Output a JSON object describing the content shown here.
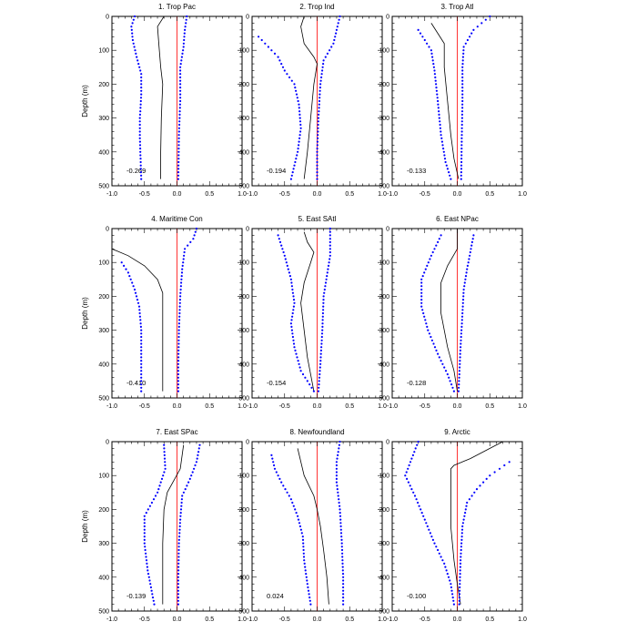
{
  "chart_data": {
    "type": "line",
    "colors": {
      "mean": "#000000",
      "spread": "#0000ff",
      "zero_line": "#ff0000",
      "frame": "#000000"
    },
    "xlim": [
      -1.0,
      1.0
    ],
    "ylim": [
      0,
      500
    ],
    "y_inverted": true,
    "grid": false,
    "y_axis_label": "Depth (m)",
    "x_tick_labels": [
      "-1.0",
      "-0.5",
      "0.0",
      "0.5",
      "1.0"
    ],
    "y_ticks": [
      0,
      100,
      200,
      300,
      400,
      500
    ],
    "panels": [
      {
        "title": "1. Trop Pac",
        "annotation": "-0.269",
        "mean": [
          [
            -0.2,
            0
          ],
          [
            -0.3,
            30
          ],
          [
            -0.28,
            80
          ],
          [
            -0.25,
            150
          ],
          [
            -0.22,
            200
          ],
          [
            -0.24,
            300
          ],
          [
            -0.25,
            400
          ],
          [
            -0.25,
            480
          ]
        ],
        "lower": [
          [
            -0.65,
            0
          ],
          [
            -0.7,
            30
          ],
          [
            -0.68,
            70
          ],
          [
            -0.62,
            120
          ],
          [
            -0.55,
            170
          ],
          [
            -0.55,
            230
          ],
          [
            -0.57,
            300
          ],
          [
            -0.57,
            360
          ],
          [
            -0.56,
            420
          ],
          [
            -0.55,
            480
          ]
        ],
        "upper": [
          [
            0.15,
            0
          ],
          [
            0.12,
            40
          ],
          [
            0.1,
            90
          ],
          [
            0.05,
            150
          ],
          [
            0.05,
            250
          ],
          [
            0.03,
            350
          ],
          [
            0.02,
            480
          ]
        ]
      },
      {
        "title": "2. Trop Ind",
        "annotation": "-0.194",
        "mean": [
          [
            -0.2,
            0
          ],
          [
            -0.25,
            30
          ],
          [
            -0.2,
            80
          ],
          [
            -0.05,
            120
          ],
          [
            0.0,
            140
          ],
          [
            -0.05,
            200
          ],
          [
            -0.1,
            300
          ],
          [
            -0.15,
            400
          ],
          [
            -0.2,
            480
          ]
        ],
        "lower": [
          [
            -0.9,
            60
          ],
          [
            -0.75,
            90
          ],
          [
            -0.6,
            120
          ],
          [
            -0.5,
            160
          ],
          [
            -0.35,
            200
          ],
          [
            -0.28,
            260
          ],
          [
            -0.25,
            330
          ],
          [
            -0.3,
            400
          ],
          [
            -0.4,
            480
          ]
        ],
        "upper": [
          [
            0.35,
            0
          ],
          [
            0.3,
            40
          ],
          [
            0.25,
            80
          ],
          [
            0.1,
            130
          ],
          [
            0.05,
            200
          ],
          [
            0.02,
            300
          ],
          [
            0.0,
            400
          ],
          [
            0.0,
            480
          ]
        ]
      },
      {
        "title": "3. Trop Atl",
        "annotation": "-0.133",
        "mean": [
          [
            -0.4,
            20
          ],
          [
            -0.3,
            50
          ],
          [
            -0.2,
            80
          ],
          [
            -0.2,
            150
          ],
          [
            -0.15,
            250
          ],
          [
            -0.1,
            350
          ],
          [
            -0.05,
            420
          ],
          [
            0.02,
            480
          ]
        ],
        "lower": [
          [
            -0.6,
            40
          ],
          [
            -0.5,
            70
          ],
          [
            -0.4,
            100
          ],
          [
            -0.35,
            160
          ],
          [
            -0.3,
            250
          ],
          [
            -0.25,
            350
          ],
          [
            -0.18,
            430
          ],
          [
            -0.1,
            480
          ]
        ],
        "upper": [
          [
            0.5,
            0
          ],
          [
            0.25,
            40
          ],
          [
            0.1,
            90
          ],
          [
            0.08,
            150
          ],
          [
            0.08,
            250
          ],
          [
            0.07,
            350
          ],
          [
            0.06,
            480
          ]
        ]
      },
      {
        "title": "4. Maritime Con",
        "annotation": "-0.410",
        "mean": [
          [
            -1.0,
            60
          ],
          [
            -0.75,
            80
          ],
          [
            -0.5,
            110
          ],
          [
            -0.3,
            150
          ],
          [
            -0.22,
            190
          ],
          [
            -0.22,
            250
          ],
          [
            -0.22,
            350
          ],
          [
            -0.22,
            480
          ]
        ],
        "lower": [
          [
            -0.85,
            100
          ],
          [
            -0.75,
            130
          ],
          [
            -0.65,
            180
          ],
          [
            -0.58,
            230
          ],
          [
            -0.55,
            300
          ],
          [
            -0.55,
            400
          ],
          [
            -0.55,
            480
          ]
        ],
        "upper": [
          [
            0.3,
            0
          ],
          [
            0.25,
            30
          ],
          [
            0.12,
            60
          ],
          [
            0.08,
            120
          ],
          [
            0.05,
            200
          ],
          [
            0.03,
            300
          ],
          [
            0.02,
            400
          ],
          [
            0.02,
            480
          ]
        ]
      },
      {
        "title": "5. East SAtl",
        "annotation": "-0.154",
        "mean": [
          [
            -0.2,
            10
          ],
          [
            -0.15,
            40
          ],
          [
            -0.05,
            70
          ],
          [
            -0.1,
            100
          ],
          [
            -0.2,
            160
          ],
          [
            -0.25,
            220
          ],
          [
            -0.2,
            300
          ],
          [
            -0.15,
            380
          ],
          [
            -0.05,
            480
          ]
        ],
        "lower": [
          [
            -0.6,
            20
          ],
          [
            -0.5,
            80
          ],
          [
            -0.4,
            150
          ],
          [
            -0.35,
            220
          ],
          [
            -0.4,
            280
          ],
          [
            -0.35,
            350
          ],
          [
            -0.25,
            420
          ],
          [
            -0.05,
            480
          ]
        ],
        "upper": [
          [
            0.2,
            0
          ],
          [
            0.2,
            80
          ],
          [
            0.15,
            140
          ],
          [
            0.1,
            200
          ],
          [
            0.08,
            300
          ],
          [
            0.05,
            400
          ],
          [
            0.02,
            480
          ]
        ]
      },
      {
        "title": "6. East NPac",
        "annotation": "-0.128",
        "mean": [
          [
            0.0,
            0
          ],
          [
            0.0,
            60
          ],
          [
            -0.15,
            110
          ],
          [
            -0.25,
            160
          ],
          [
            -0.25,
            250
          ],
          [
            -0.15,
            350
          ],
          [
            -0.05,
            420
          ],
          [
            0.0,
            480
          ]
        ],
        "lower": [
          [
            -0.25,
            20
          ],
          [
            -0.4,
            80
          ],
          [
            -0.55,
            150
          ],
          [
            -0.55,
            230
          ],
          [
            -0.45,
            300
          ],
          [
            -0.3,
            370
          ],
          [
            -0.15,
            430
          ],
          [
            -0.05,
            480
          ]
        ],
        "upper": [
          [
            0.25,
            20
          ],
          [
            0.2,
            70
          ],
          [
            0.15,
            120
          ],
          [
            0.1,
            180
          ],
          [
            0.08,
            250
          ],
          [
            0.05,
            350
          ],
          [
            0.02,
            480
          ]
        ]
      },
      {
        "title": "7. East SPac",
        "annotation": "-0.139",
        "mean": [
          [
            0.1,
            10
          ],
          [
            0.05,
            80
          ],
          [
            -0.15,
            150
          ],
          [
            -0.2,
            200
          ],
          [
            -0.22,
            300
          ],
          [
            -0.22,
            400
          ],
          [
            -0.22,
            480
          ]
        ],
        "lower": [
          [
            -0.2,
            10
          ],
          [
            -0.18,
            80
          ],
          [
            -0.3,
            150
          ],
          [
            -0.5,
            220
          ],
          [
            -0.5,
            300
          ],
          [
            -0.45,
            380
          ],
          [
            -0.35,
            480
          ]
        ],
        "upper": [
          [
            0.35,
            10
          ],
          [
            0.3,
            60
          ],
          [
            0.2,
            110
          ],
          [
            0.08,
            160
          ],
          [
            0.05,
            230
          ],
          [
            0.03,
            300
          ],
          [
            0.02,
            400
          ],
          [
            0.02,
            480
          ]
        ]
      },
      {
        "title": "8. Newfoundland",
        "annotation": "0.024",
        "mean": [
          [
            -0.3,
            20
          ],
          [
            -0.2,
            100
          ],
          [
            -0.05,
            160
          ],
          [
            0.0,
            200
          ],
          [
            0.05,
            250
          ],
          [
            0.1,
            320
          ],
          [
            0.15,
            400
          ],
          [
            0.18,
            480
          ]
        ],
        "lower": [
          [
            -0.7,
            40
          ],
          [
            -0.65,
            80
          ],
          [
            -0.55,
            120
          ],
          [
            -0.4,
            170
          ],
          [
            -0.3,
            220
          ],
          [
            -0.22,
            280
          ],
          [
            -0.2,
            350
          ],
          [
            -0.15,
            420
          ],
          [
            -0.1,
            480
          ]
        ],
        "upper": [
          [
            0.35,
            0
          ],
          [
            0.3,
            60
          ],
          [
            0.3,
            120
          ],
          [
            0.35,
            200
          ],
          [
            0.38,
            300
          ],
          [
            0.4,
            400
          ],
          [
            0.4,
            480
          ]
        ]
      },
      {
        "title": "9. Arctic",
        "annotation": "-0.100",
        "mean": [
          [
            0.7,
            0
          ],
          [
            0.5,
            20
          ],
          [
            0.2,
            50
          ],
          [
            -0.05,
            70
          ],
          [
            -0.1,
            80
          ],
          [
            -0.1,
            150
          ],
          [
            -0.1,
            250
          ],
          [
            -0.05,
            350
          ],
          [
            0.0,
            420
          ],
          [
            0.05,
            480
          ]
        ],
        "lower": [
          [
            -0.6,
            0
          ],
          [
            -0.8,
            100
          ],
          [
            -0.65,
            160
          ],
          [
            -0.5,
            230
          ],
          [
            -0.35,
            300
          ],
          [
            -0.2,
            360
          ],
          [
            -0.1,
            420
          ],
          [
            -0.05,
            480
          ]
        ],
        "upper": [
          [
            0.8,
            60
          ],
          [
            0.5,
            100
          ],
          [
            0.3,
            140
          ],
          [
            0.15,
            180
          ],
          [
            0.08,
            250
          ],
          [
            0.05,
            350
          ],
          [
            0.03,
            480
          ]
        ]
      }
    ]
  }
}
